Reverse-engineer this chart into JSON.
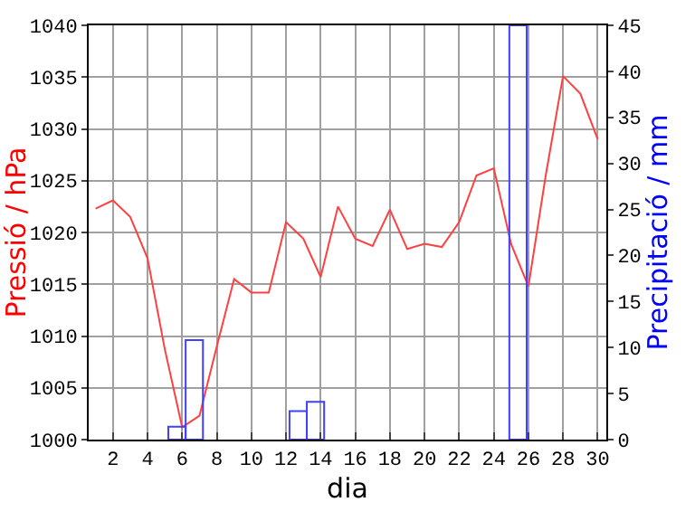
{
  "chart_data": {
    "type": "line",
    "xlabel": "dia",
    "ylabel": "Pressió / hPa",
    "y2label": "Precipitació / mm",
    "xlim": [
      0.6,
      30.5
    ],
    "xticks": [
      2,
      4,
      6,
      8,
      10,
      12,
      14,
      16,
      18,
      20,
      22,
      24,
      26,
      28,
      30
    ],
    "ylim": [
      1000,
      1040
    ],
    "yticks": [
      1000,
      1005,
      1010,
      1015,
      1020,
      1025,
      1030,
      1035,
      1040
    ],
    "y2lim": [
      0,
      45
    ],
    "y2ticks": [
      0,
      5,
      10,
      15,
      20,
      25,
      30,
      35,
      40,
      45
    ],
    "grid": true,
    "series": [
      {
        "color": "#ff4040",
        "x": [
          1,
          2,
          3,
          4,
          5,
          6,
          7,
          8,
          9,
          10,
          11,
          12,
          13,
          14,
          15,
          16,
          17,
          18,
          19,
          20,
          21,
          22,
          23,
          24,
          25,
          26,
          27,
          28,
          29,
          30
        ],
        "values": [
          1022.3,
          1023.1,
          1021.5,
          1017.5,
          1008.7,
          1001.2,
          1002.3,
          1009,
          1015.5,
          1014.2,
          1014.2,
          1021,
          1019.4,
          1015.7,
          1022.5,
          1019.4,
          1018.7,
          1022.2,
          1018.4,
          1018.9,
          1018.6,
          1021,
          1025.5,
          1026.2,
          1018.9,
          1014.8,
          1025.5,
          1035.1,
          1033.4,
          1029
        ]
      },
      {
        "type": "bar",
        "axis": "y2",
        "color": "#4040ff",
        "x": [
          5.7,
          6.7,
          12.7,
          13.7,
          25.4
        ],
        "values": [
          1.4,
          10.8,
          3.1,
          4.1,
          45
        ]
      }
    ]
  }
}
